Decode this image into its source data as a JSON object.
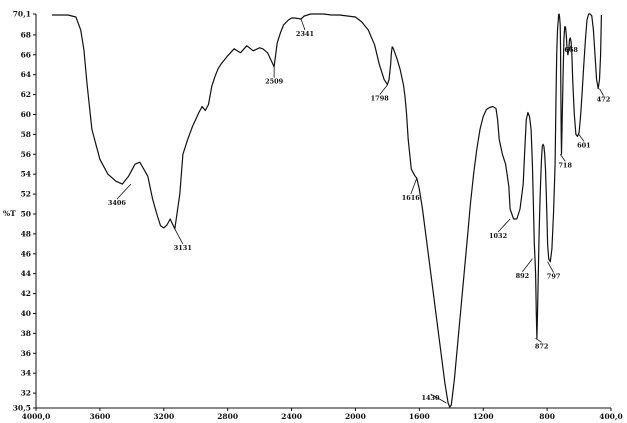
{
  "chart_data": {
    "type": "line",
    "ylabel": "%T",
    "xlabel": "",
    "xlim": [
      4000.0,
      400.0
    ],
    "ylim": [
      30.5,
      70.1
    ],
    "x_ticks": [
      "4000,0",
      "3600",
      "3200",
      "2800",
      "2400",
      "2000",
      "1600",
      "1200",
      "800",
      "400,0"
    ],
    "x_tick_values": [
      4000,
      3600,
      3200,
      2800,
      2400,
      2000,
      1600,
      1200,
      800,
      400
    ],
    "y_ticks": [
      "70,1",
      "68",
      "66",
      "64",
      "62",
      "60",
      "58",
      "56",
      "54",
      "52",
      "50",
      "48",
      "46",
      "44",
      "42",
      "40",
      "38",
      "36",
      "34",
      "32",
      "30,5"
    ],
    "y_tick_values": [
      70.1,
      68,
      66,
      64,
      62,
      60,
      58,
      56,
      54,
      52,
      50,
      48,
      46,
      44,
      42,
      40,
      38,
      36,
      34,
      32,
      30.5
    ],
    "grid": false,
    "series": [
      {
        "color": "#111111",
        "x": [
          3900,
          3800,
          3750,
          3720,
          3700,
          3680,
          3650,
          3600,
          3550,
          3500,
          3460,
          3420,
          3380,
          3350,
          3300,
          3270,
          3240,
          3220,
          3200,
          3180,
          3160,
          3131,
          3100,
          3080,
          3050,
          3020,
          3000,
          2980,
          2960,
          2940,
          2920,
          2900,
          2880,
          2860,
          2840,
          2800,
          2760,
          2720,
          2680,
          2640,
          2600,
          2580,
          2550,
          2530,
          2509,
          2490,
          2470,
          2450,
          2420,
          2400,
          2380,
          2341,
          2320,
          2300,
          2280,
          2250,
          2200,
          2150,
          2100,
          2050,
          2000,
          1960,
          1920,
          1880,
          1850,
          1820,
          1800,
          1790,
          1780,
          1775,
          1770,
          1765,
          1760,
          1740,
          1720,
          1700,
          1690,
          1680,
          1670,
          1650,
          1640,
          1630,
          1616,
          1600,
          1580,
          1560,
          1540,
          1520,
          1500,
          1480,
          1460,
          1440,
          1430,
          1420,
          1410,
          1400,
          1380,
          1360,
          1340,
          1320,
          1300,
          1280,
          1260,
          1240,
          1220,
          1200,
          1180,
          1160,
          1140,
          1120,
          1110,
          1100,
          1080,
          1060,
          1040,
          1032,
          1010,
          990,
          970,
          950,
          940,
          930,
          920,
          910,
          900,
          892,
          885,
          880,
          876,
          872,
          868,
          864,
          860,
          855,
          850,
          845,
          840,
          835,
          830,
          825,
          820,
          815,
          810,
          805,
          800,
          797,
          790,
          780,
          770,
          760,
          750,
          745,
          740,
          735,
          730,
          728,
          725,
          722,
          718,
          716,
          714,
          712,
          710,
          708,
          705,
          700,
          695,
          690,
          685,
          680,
          675,
          670,
          665,
          660,
          655,
          650,
          645,
          640,
          630,
          620,
          610,
          600,
          590,
          580,
          570,
          560,
          550,
          540,
          530,
          520,
          510,
          500,
          490,
          480,
          472,
          465,
          460
        ],
        "y": [
          70.0,
          70.0,
          69.8,
          68.5,
          66.5,
          63.0,
          58.5,
          55.5,
          54.0,
          53.3,
          53.0,
          53.8,
          55.0,
          55.2,
          53.8,
          51.5,
          49.8,
          48.8,
          48.6,
          48.9,
          49.5,
          48.5,
          52.0,
          56.0,
          57.5,
          58.8,
          59.5,
          60.2,
          60.8,
          60.4,
          61.0,
          62.8,
          63.8,
          64.6,
          65.1,
          65.9,
          66.6,
          66.2,
          66.9,
          66.4,
          66.7,
          66.6,
          66.2,
          65.5,
          64.8,
          67.2,
          68.2,
          69.0,
          69.5,
          69.7,
          69.7,
          69.6,
          69.9,
          70.0,
          70.1,
          70.1,
          70.1,
          70.0,
          70.0,
          69.9,
          69.8,
          69.3,
          68.5,
          67.0,
          65.0,
          63.5,
          63.0,
          63.5,
          65.0,
          66.2,
          66.8,
          66.7,
          66.5,
          65.6,
          64.5,
          63.0,
          61.8,
          60.0,
          57.5,
          54.5,
          54.2,
          53.9,
          53.6,
          52.5,
          50.5,
          48.0,
          45.5,
          43.0,
          40.5,
          38.0,
          35.5,
          33.0,
          32.0,
          31.0,
          30.6,
          30.8,
          33.5,
          37.0,
          40.5,
          44.0,
          47.5,
          51.0,
          54.0,
          56.5,
          58.5,
          59.8,
          60.5,
          60.7,
          60.8,
          60.6,
          59.5,
          57.5,
          56.0,
          55.0,
          52.8,
          50.5,
          49.5,
          49.5,
          50.5,
          53.0,
          56.5,
          59.5,
          60.2,
          59.8,
          58.5,
          55.0,
          50.5,
          47.0,
          45.5,
          44.0,
          40.0,
          37.5,
          40.0,
          44.0,
          48.0,
          51.0,
          53.5,
          55.5,
          56.8,
          57.0,
          56.8,
          56.0,
          54.5,
          52.0,
          49.0,
          47.0,
          45.5,
          45.2,
          46.5,
          50.0,
          55.0,
          61.0,
          66.0,
          68.5,
          69.5,
          70.0,
          70.1,
          69.8,
          69.0,
          67.0,
          63.0,
          58.0,
          56.0,
          57.5,
          60.0,
          64.0,
          67.5,
          68.8,
          68.8,
          68.0,
          66.5,
          66.0,
          66.5,
          67.5,
          67.7,
          67.3,
          66.0,
          63.5,
          60.0,
          58.0,
          57.8,
          58.2,
          60.0,
          62.5,
          65.0,
          67.5,
          69.5,
          70.1,
          70.1,
          69.9,
          68.5,
          66.0,
          63.5,
          62.6,
          63.5,
          66.0,
          70.0
        ]
      }
    ],
    "annotations": [
      {
        "label": "3406",
        "x": 3406,
        "y": 53.0
      },
      {
        "label": "3131",
        "x": 3131,
        "y": 48.5
      },
      {
        "label": "2509",
        "x": 2509,
        "y": 64.8
      },
      {
        "label": "2341",
        "x": 2341,
        "y": 69.6
      },
      {
        "label": "1798",
        "x": 1798,
        "y": 63.0
      },
      {
        "label": "1616",
        "x": 1616,
        "y": 53.6
      },
      {
        "label": "1430",
        "x": 1430,
        "y": 31.0
      },
      {
        "label": "1032",
        "x": 1032,
        "y": 49.5
      },
      {
        "label": "892",
        "x": 892,
        "y": 45.5
      },
      {
        "label": "872",
        "x": 872,
        "y": 37.5
      },
      {
        "label": "797",
        "x": 797,
        "y": 45.2
      },
      {
        "label": "718",
        "x": 718,
        "y": 56.0
      },
      {
        "label": "668",
        "x": 668,
        "y": 66.5
      },
      {
        "label": "601",
        "x": 601,
        "y": 58.0
      },
      {
        "label": "472",
        "x": 472,
        "y": 62.6
      }
    ]
  }
}
